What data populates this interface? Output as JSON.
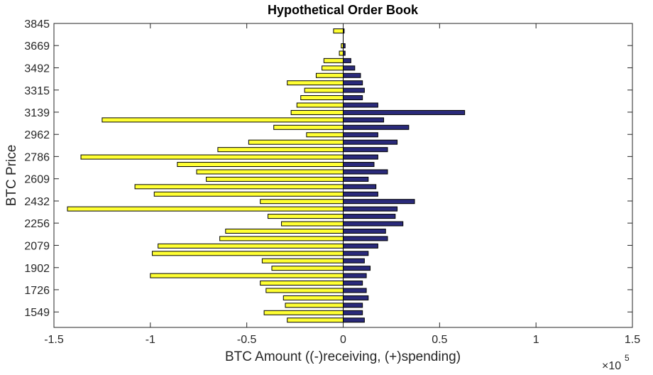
{
  "chart_data": {
    "type": "bar",
    "orientation": "horizontal",
    "title": "Hypothetical Order Book",
    "xlabel": "BTC Amount ((-)receiving, (+)spending)",
    "ylabel": "BTC Price",
    "x_exponent_label": "×10",
    "x_exponent_power": "5",
    "xlim": [
      -1.5,
      1.5
    ],
    "ylim": [
      1426,
      3845
    ],
    "xticks": [
      -1.5,
      -1,
      -0.5,
      0,
      0.5,
      1,
      1.5
    ],
    "xtick_labels": [
      "-1.5",
      "-1",
      "-0.5",
      "0",
      "0.5",
      "1",
      "1.5"
    ],
    "yticks": [
      1549,
      1726,
      1902,
      2079,
      2256,
      2432,
      2609,
      2786,
      2962,
      3139,
      3315,
      3492,
      3669,
      3845
    ],
    "ytick_labels": [
      "1549",
      "1726",
      "1902",
      "2079",
      "2256",
      "2432",
      "2609",
      "2786",
      "2962",
      "3139",
      "3315",
      "3492",
      "3669",
      "3845"
    ],
    "x_scale_factor": 100000,
    "price_levels": [
      1484,
      1543,
      1602,
      1661,
      1720,
      1779,
      1838,
      1897,
      1956,
      2015,
      2074,
      2133,
      2192,
      2251,
      2310,
      2369,
      2428,
      2487,
      2546,
      2605,
      2664,
      2723,
      2782,
      2841,
      2900,
      2959,
      3018,
      3077,
      3136,
      3195,
      3254,
      3313,
      3372,
      3431,
      3490,
      3549,
      3608,
      3667,
      3726,
      3785
    ],
    "series": [
      {
        "color": "#ffff33",
        "values": [
          -0.29,
          -0.41,
          -0.3,
          -0.31,
          -0.4,
          -0.43,
          -1.0,
          -0.37,
          -0.42,
          -0.99,
          -0.96,
          -0.64,
          -0.61,
          -0.32,
          -0.39,
          -1.43,
          -0.43,
          -0.98,
          -1.08,
          -0.71,
          -0.76,
          -0.86,
          -1.36,
          -0.65,
          -0.49,
          -0.19,
          -0.36,
          -1.25,
          -0.27,
          -0.24,
          -0.22,
          -0.2,
          -0.29,
          -0.14,
          -0.11,
          -0.1,
          -0.02,
          -0.01,
          0,
          -0.05
        ]
      },
      {
        "color": "#2a2a7a",
        "values": [
          0.11,
          0.1,
          0.1,
          0.13,
          0.12,
          0.1,
          0.12,
          0.14,
          0.11,
          0.13,
          0.18,
          0.23,
          0.22,
          0.31,
          0.27,
          0.28,
          0.37,
          0.18,
          0.17,
          0.13,
          0.23,
          0.16,
          0.18,
          0.23,
          0.28,
          0.18,
          0.34,
          0.21,
          0.63,
          0.18,
          0.1,
          0.11,
          0.1,
          0.09,
          0.06,
          0.04,
          0.01,
          0.01,
          0,
          0.005
        ]
      }
    ],
    "grid": false,
    "legend": "none"
  }
}
